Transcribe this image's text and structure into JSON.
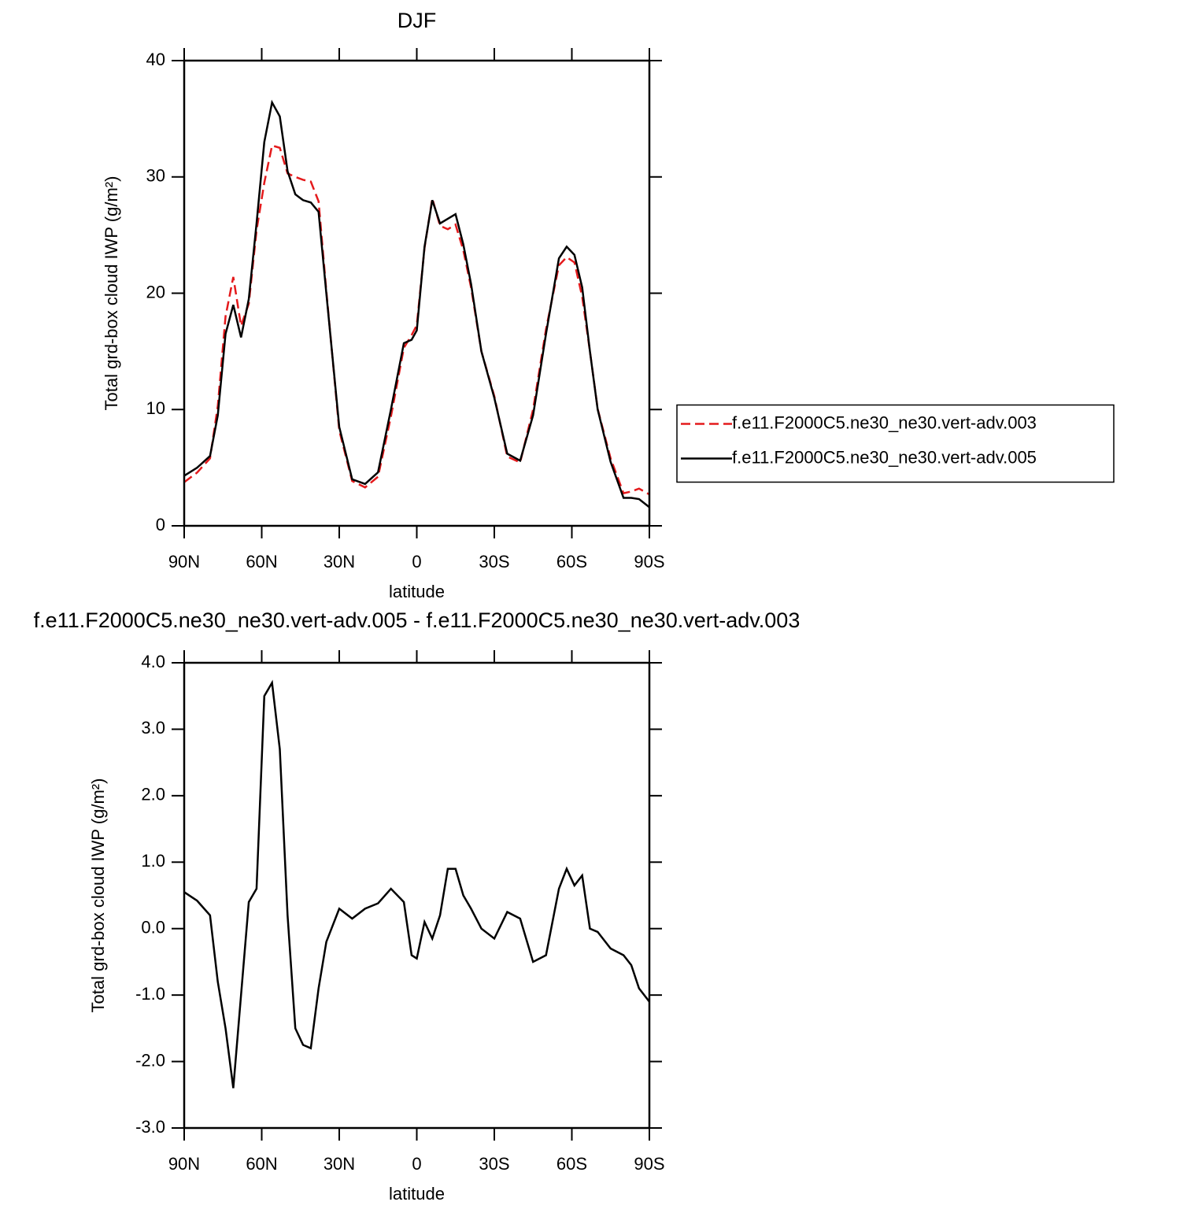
{
  "chart_data": [
    {
      "type": "line",
      "title": "DJF",
      "xlabel": "latitude",
      "ylabel": "Total grd-box cloud IWP (g/m²)",
      "x": [
        90,
        85,
        80,
        77,
        74,
        71,
        68,
        65,
        62,
        59,
        56,
        53,
        50,
        47,
        44,
        41,
        38,
        35,
        30,
        25,
        20,
        15,
        10,
        5,
        2,
        0,
        -3,
        -6,
        -9,
        -12,
        -15,
        -18,
        -21,
        -25,
        -30,
        -35,
        -40,
        -45,
        -50,
        -55,
        -58,
        -61,
        -64,
        -67,
        -70,
        -75,
        -80,
        -83,
        -86,
        -90
      ],
      "xlim": [
        90,
        -90
      ],
      "xticks": [
        {
          "value": 90,
          "label": "90N"
        },
        {
          "value": 60,
          "label": "60N"
        },
        {
          "value": 30,
          "label": "30N"
        },
        0,
        {
          "value": -30,
          "label": "30S"
        },
        {
          "value": -60,
          "label": "60S"
        },
        {
          "value": -90,
          "label": "90S"
        }
      ],
      "ylim": [
        0,
        40
      ],
      "yticks": [
        0,
        10,
        20,
        30,
        40
      ],
      "legend": "right",
      "series": [
        {
          "name": "f.e11.F2000C5.ne30_ne30.vert-adv.003",
          "color": "#e41a1c",
          "dashed": true,
          "values": [
            3.75,
            4.58,
            5.8,
            10.3,
            18.0,
            21.4,
            17.2,
            19.1,
            25.4,
            29.5,
            32.7,
            32.5,
            30.3,
            30.0,
            29.75,
            29.6,
            27.9,
            20.2,
            8.2,
            3.85,
            3.3,
            4.22,
            9.4,
            15.3,
            16.4,
            17.25,
            23.9,
            28.15,
            25.8,
            25.5,
            25.9,
            23.7,
            20.5,
            15.0,
            11.15,
            5.95,
            5.45,
            10.0,
            16.9,
            22.4,
            23.1,
            22.65,
            19.7,
            15.0,
            10.05,
            5.8,
            2.8,
            2.95,
            3.2,
            2.7
          ]
        },
        {
          "name": "f.e11.F2000C5.ne30_ne30.vert-adv.005",
          "color": "#000000",
          "dashed": false,
          "values": [
            4.3,
            5.0,
            6.0,
            9.5,
            16.5,
            19.0,
            16.2,
            19.5,
            26,
            33,
            36.4,
            35.2,
            30.5,
            28.5,
            28.0,
            27.8,
            27.0,
            20,
            8.5,
            4.0,
            3.6,
            4.6,
            10,
            15.7,
            16.0,
            16.8,
            24,
            28,
            26,
            26.4,
            26.8,
            24.2,
            20.8,
            15,
            11,
            6.2,
            5.6,
            9.5,
            16.5,
            23.0,
            24.0,
            23.3,
            20.5,
            15,
            10,
            5.5,
            2.4,
            2.4,
            2.3,
            1.6
          ]
        }
      ]
    },
    {
      "type": "line",
      "title": "f.e11.F2000C5.ne30_ne30.vert-adv.005 - f.e11.F2000C5.ne30_ne30.vert-adv.003",
      "xlabel": "latitude",
      "ylabel": "Total grd-box cloud IWP (g/m²)",
      "x": [
        90,
        85,
        80,
        77,
        74,
        71,
        68,
        65,
        62,
        59,
        56,
        53,
        50,
        47,
        44,
        41,
        38,
        35,
        30,
        25,
        20,
        15,
        10,
        5,
        2,
        0,
        -3,
        -6,
        -9,
        -12,
        -15,
        -18,
        -21,
        -25,
        -30,
        -35,
        -40,
        -45,
        -50,
        -55,
        -58,
        -61,
        -64,
        -67,
        -70,
        -75,
        -80,
        -83,
        -86,
        -90
      ],
      "xlim": [
        90,
        -90
      ],
      "xticks": [
        {
          "value": 90,
          "label": "90N"
        },
        {
          "value": 60,
          "label": "60N"
        },
        {
          "value": 30,
          "label": "30N"
        },
        0,
        {
          "value": -30,
          "label": "30S"
        },
        {
          "value": -60,
          "label": "60S"
        },
        {
          "value": -90,
          "label": "90S"
        }
      ],
      "ylim": [
        -3,
        4
      ],
      "yticks": [
        {
          "value": -3,
          "label": "-3.0"
        },
        {
          "value": -2,
          "label": "-2.0"
        },
        {
          "value": -1,
          "label": "-1.0"
        },
        {
          "value": 0,
          "label": "0.0"
        },
        {
          "value": 1,
          "label": "1.0"
        },
        {
          "value": 2,
          "label": "2.0"
        },
        {
          "value": 3,
          "label": "3.0"
        },
        {
          "value": 4,
          "label": "4.0"
        }
      ],
      "series": [
        {
          "color": "#000000",
          "dashed": false,
          "values": [
            0.55,
            0.42,
            0.2,
            -0.8,
            -1.5,
            -2.4,
            -1.0,
            0.4,
            0.6,
            3.5,
            3.7,
            2.7,
            0.2,
            -1.5,
            -1.75,
            -1.8,
            -0.9,
            -0.2,
            0.3,
            0.15,
            0.3,
            0.38,
            0.6,
            0.4,
            -0.4,
            -0.45,
            0.1,
            -0.15,
            0.2,
            0.9,
            0.9,
            0.5,
            0.3,
            0.0,
            -0.15,
            0.25,
            0.15,
            -0.5,
            -0.4,
            0.6,
            0.9,
            0.65,
            0.8,
            0.0,
            -0.05,
            -0.3,
            -0.4,
            -0.55,
            -0.9,
            -1.1
          ]
        }
      ]
    }
  ]
}
